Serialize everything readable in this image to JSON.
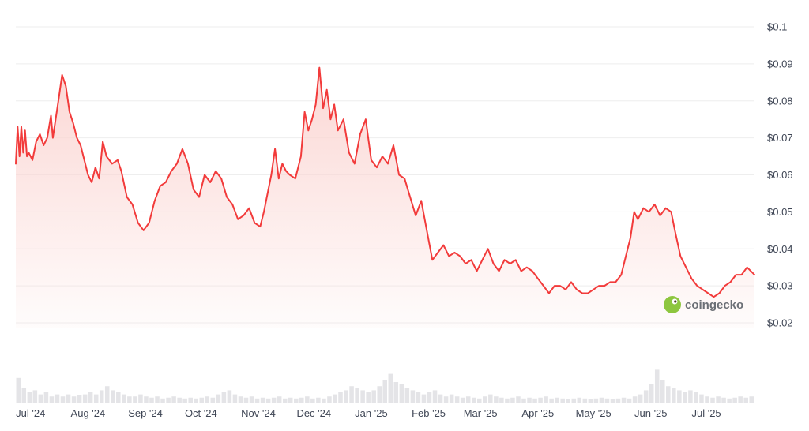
{
  "watermark": {
    "brand": "coingecko",
    "accent": "#8dc63f"
  },
  "colors": {
    "line": "#f23b3b",
    "fill": "#fbd5d2",
    "grid": "#eeeeee",
    "volume": "#e4e4e7"
  },
  "chart_data": {
    "type": "area",
    "x_start": "2024-06-23",
    "x_end": "2025-07-27",
    "yticks": [
      "$0.1",
      "$0.09",
      "$0.08",
      "$0.07",
      "$0.06",
      "$0.05",
      "$0.04",
      "$0.03",
      "$0.02"
    ],
    "ylim": [
      0.02,
      0.1
    ],
    "xticks": [
      {
        "label": "Jul '24",
        "date": "2024-07-01"
      },
      {
        "label": "Aug '24",
        "date": "2024-08-01"
      },
      {
        "label": "Sep '24",
        "date": "2024-09-01"
      },
      {
        "label": "Oct '24",
        "date": "2024-10-01"
      },
      {
        "label": "Nov '24",
        "date": "2024-11-01"
      },
      {
        "label": "Dec '24",
        "date": "2024-12-01"
      },
      {
        "label": "Jan '25",
        "date": "2025-01-01"
      },
      {
        "label": "Feb '25",
        "date": "2025-02-01"
      },
      {
        "label": "Mar '25",
        "date": "2025-03-01"
      },
      {
        "label": "Apr '25",
        "date": "2025-04-01"
      },
      {
        "label": "May '25",
        "date": "2025-05-01"
      },
      {
        "label": "Jun '25",
        "date": "2025-06-01"
      },
      {
        "label": "Jul '25",
        "date": "2025-07-01"
      }
    ],
    "series": [
      {
        "values": [
          [
            "2024-06-23",
            0.063
          ],
          [
            "2024-06-24",
            0.073
          ],
          [
            "2024-06-25",
            0.065
          ],
          [
            "2024-06-26",
            0.073
          ],
          [
            "2024-06-27",
            0.066
          ],
          [
            "2024-06-28",
            0.072
          ],
          [
            "2024-06-29",
            0.065
          ],
          [
            "2024-06-30",
            0.066
          ],
          [
            "2024-07-02",
            0.064
          ],
          [
            "2024-07-04",
            0.069
          ],
          [
            "2024-07-06",
            0.071
          ],
          [
            "2024-07-08",
            0.068
          ],
          [
            "2024-07-10",
            0.07
          ],
          [
            "2024-07-12",
            0.076
          ],
          [
            "2024-07-13",
            0.07
          ],
          [
            "2024-07-16",
            0.08
          ],
          [
            "2024-07-18",
            0.087
          ],
          [
            "2024-07-20",
            0.084
          ],
          [
            "2024-07-22",
            0.077
          ],
          [
            "2024-07-24",
            0.074
          ],
          [
            "2024-07-26",
            0.07
          ],
          [
            "2024-07-28",
            0.068
          ],
          [
            "2024-07-30",
            0.064
          ],
          [
            "2024-08-01",
            0.06
          ],
          [
            "2024-08-03",
            0.058
          ],
          [
            "2024-08-05",
            0.062
          ],
          [
            "2024-08-07",
            0.059
          ],
          [
            "2024-08-09",
            0.069
          ],
          [
            "2024-08-11",
            0.065
          ],
          [
            "2024-08-14",
            0.063
          ],
          [
            "2024-08-17",
            0.064
          ],
          [
            "2024-08-19",
            0.061
          ],
          [
            "2024-08-22",
            0.054
          ],
          [
            "2024-08-25",
            0.052
          ],
          [
            "2024-08-28",
            0.047
          ],
          [
            "2024-08-31",
            0.045
          ],
          [
            "2024-09-03",
            0.047
          ],
          [
            "2024-09-06",
            0.053
          ],
          [
            "2024-09-09",
            0.057
          ],
          [
            "2024-09-12",
            0.058
          ],
          [
            "2024-09-15",
            0.061
          ],
          [
            "2024-09-18",
            0.063
          ],
          [
            "2024-09-21",
            0.067
          ],
          [
            "2024-09-24",
            0.063
          ],
          [
            "2024-09-27",
            0.056
          ],
          [
            "2024-09-30",
            0.054
          ],
          [
            "2024-10-03",
            0.06
          ],
          [
            "2024-10-06",
            0.058
          ],
          [
            "2024-10-09",
            0.061
          ],
          [
            "2024-10-12",
            0.059
          ],
          [
            "2024-10-15",
            0.054
          ],
          [
            "2024-10-18",
            0.052
          ],
          [
            "2024-10-21",
            0.048
          ],
          [
            "2024-10-24",
            0.049
          ],
          [
            "2024-10-27",
            0.051
          ],
          [
            "2024-10-30",
            0.047
          ],
          [
            "2024-11-02",
            0.046
          ],
          [
            "2024-11-04",
            0.05
          ],
          [
            "2024-11-06",
            0.055
          ],
          [
            "2024-11-08",
            0.06
          ],
          [
            "2024-11-10",
            0.067
          ],
          [
            "2024-11-12",
            0.059
          ],
          [
            "2024-11-14",
            0.063
          ],
          [
            "2024-11-16",
            0.061
          ],
          [
            "2024-11-18",
            0.06
          ],
          [
            "2024-11-21",
            0.059
          ],
          [
            "2024-11-24",
            0.065
          ],
          [
            "2024-11-26",
            0.077
          ],
          [
            "2024-11-28",
            0.072
          ],
          [
            "2024-11-30",
            0.075
          ],
          [
            "2024-12-02",
            0.079
          ],
          [
            "2024-12-04",
            0.089
          ],
          [
            "2024-12-06",
            0.078
          ],
          [
            "2024-12-08",
            0.083
          ],
          [
            "2024-12-10",
            0.075
          ],
          [
            "2024-12-12",
            0.079
          ],
          [
            "2024-12-14",
            0.072
          ],
          [
            "2024-12-17",
            0.075
          ],
          [
            "2024-12-20",
            0.066
          ],
          [
            "2024-12-23",
            0.063
          ],
          [
            "2024-12-26",
            0.071
          ],
          [
            "2024-12-29",
            0.075
          ],
          [
            "2025-01-01",
            0.064
          ],
          [
            "2025-01-04",
            0.062
          ],
          [
            "2025-01-07",
            0.065
          ],
          [
            "2025-01-10",
            0.063
          ],
          [
            "2025-01-13",
            0.068
          ],
          [
            "2025-01-16",
            0.06
          ],
          [
            "2025-01-19",
            0.059
          ],
          [
            "2025-01-22",
            0.054
          ],
          [
            "2025-01-25",
            0.049
          ],
          [
            "2025-01-28",
            0.053
          ],
          [
            "2025-01-31",
            0.045
          ],
          [
            "2025-02-03",
            0.037
          ],
          [
            "2025-02-06",
            0.039
          ],
          [
            "2025-02-09",
            0.041
          ],
          [
            "2025-02-12",
            0.038
          ],
          [
            "2025-02-15",
            0.039
          ],
          [
            "2025-02-18",
            0.038
          ],
          [
            "2025-02-21",
            0.036
          ],
          [
            "2025-02-24",
            0.037
          ],
          [
            "2025-02-27",
            0.034
          ],
          [
            "2025-03-02",
            0.037
          ],
          [
            "2025-03-05",
            0.04
          ],
          [
            "2025-03-08",
            0.036
          ],
          [
            "2025-03-11",
            0.034
          ],
          [
            "2025-03-14",
            0.037
          ],
          [
            "2025-03-17",
            0.036
          ],
          [
            "2025-03-20",
            0.037
          ],
          [
            "2025-03-23",
            0.034
          ],
          [
            "2025-03-26",
            0.035
          ],
          [
            "2025-03-29",
            0.034
          ],
          [
            "2025-04-01",
            0.032
          ],
          [
            "2025-04-04",
            0.03
          ],
          [
            "2025-04-07",
            0.028
          ],
          [
            "2025-04-10",
            0.03
          ],
          [
            "2025-04-13",
            0.03
          ],
          [
            "2025-04-16",
            0.029
          ],
          [
            "2025-04-19",
            0.031
          ],
          [
            "2025-04-22",
            0.029
          ],
          [
            "2025-04-25",
            0.028
          ],
          [
            "2025-04-28",
            0.028
          ],
          [
            "2025-05-01",
            0.029
          ],
          [
            "2025-05-04",
            0.03
          ],
          [
            "2025-05-07",
            0.03
          ],
          [
            "2025-05-10",
            0.031
          ],
          [
            "2025-05-13",
            0.031
          ],
          [
            "2025-05-16",
            0.033
          ],
          [
            "2025-05-19",
            0.039
          ],
          [
            "2025-05-21",
            0.043
          ],
          [
            "2025-05-23",
            0.05
          ],
          [
            "2025-05-25",
            0.048
          ],
          [
            "2025-05-28",
            0.051
          ],
          [
            "2025-05-31",
            0.05
          ],
          [
            "2025-06-03",
            0.052
          ],
          [
            "2025-06-06",
            0.049
          ],
          [
            "2025-06-09",
            0.051
          ],
          [
            "2025-06-12",
            0.05
          ],
          [
            "2025-06-14",
            0.045
          ],
          [
            "2025-06-17",
            0.038
          ],
          [
            "2025-06-20",
            0.035
          ],
          [
            "2025-06-23",
            0.032
          ],
          [
            "2025-06-26",
            0.03
          ],
          [
            "2025-06-29",
            0.029
          ],
          [
            "2025-07-02",
            0.028
          ],
          [
            "2025-07-05",
            0.027
          ],
          [
            "2025-07-08",
            0.028
          ],
          [
            "2025-07-11",
            0.03
          ],
          [
            "2025-07-14",
            0.031
          ],
          [
            "2025-07-17",
            0.033
          ],
          [
            "2025-07-20",
            0.033
          ],
          [
            "2025-07-23",
            0.035
          ],
          [
            "2025-07-27",
            0.033
          ]
        ]
      }
    ],
    "volume_relative": [
      0.6,
      0.35,
      0.25,
      0.3,
      0.2,
      0.25,
      0.15,
      0.2,
      0.15,
      0.2,
      0.15,
      0.18,
      0.2,
      0.25,
      0.2,
      0.3,
      0.4,
      0.3,
      0.25,
      0.2,
      0.15,
      0.15,
      0.2,
      0.15,
      0.12,
      0.15,
      0.1,
      0.12,
      0.15,
      0.12,
      0.1,
      0.12,
      0.1,
      0.12,
      0.15,
      0.12,
      0.2,
      0.25,
      0.3,
      0.2,
      0.15,
      0.12,
      0.15,
      0.1,
      0.12,
      0.1,
      0.12,
      0.15,
      0.1,
      0.12,
      0.1,
      0.12,
      0.15,
      0.1,
      0.12,
      0.1,
      0.15,
      0.2,
      0.25,
      0.3,
      0.4,
      0.35,
      0.3,
      0.25,
      0.3,
      0.4,
      0.55,
      0.7,
      0.5,
      0.45,
      0.35,
      0.3,
      0.25,
      0.2,
      0.25,
      0.3,
      0.2,
      0.15,
      0.2,
      0.15,
      0.12,
      0.15,
      0.12,
      0.1,
      0.15,
      0.2,
      0.15,
      0.12,
      0.1,
      0.12,
      0.15,
      0.1,
      0.12,
      0.1,
      0.12,
      0.15,
      0.1,
      0.12,
      0.1,
      0.08,
      0.1,
      0.12,
      0.1,
      0.08,
      0.1,
      0.12,
      0.1,
      0.08,
      0.1,
      0.12,
      0.1,
      0.15,
      0.2,
      0.3,
      0.45,
      0.8,
      0.55,
      0.4,
      0.35,
      0.3,
      0.25,
      0.3,
      0.25,
      0.2,
      0.15,
      0.12,
      0.15,
      0.12,
      0.1,
      0.12,
      0.15,
      0.12,
      0.15
    ]
  }
}
